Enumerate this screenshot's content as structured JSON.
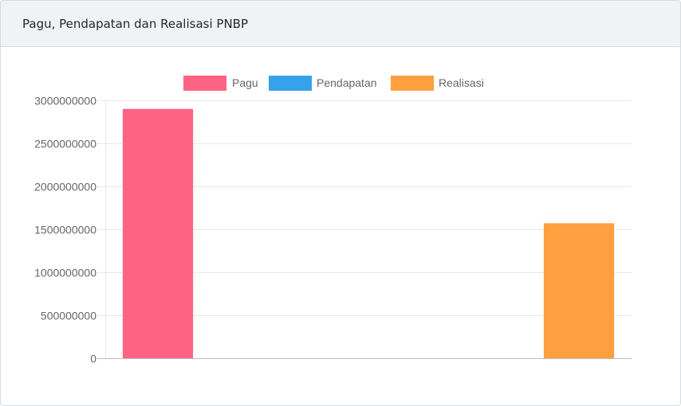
{
  "card": {
    "title": "Pagu, Pendapatan dan Realisasi PNBP"
  },
  "chart_data": {
    "type": "bar",
    "categories": [
      "",
      ""
    ],
    "series": [
      {
        "name": "Pagu",
        "color": "#ff6384",
        "values": [
          2900000000,
          0
        ]
      },
      {
        "name": "Pendapatan",
        "color": "#36a2eb",
        "values": [
          0,
          0
        ]
      },
      {
        "name": "Realisasi",
        "color": "#ff9f40",
        "values": [
          0,
          1570000000
        ]
      }
    ],
    "yticks": [
      "0",
      "500000000",
      "1000000000",
      "1500000000",
      "2000000000",
      "2500000000",
      "3000000000"
    ],
    "ylim": [
      0,
      3000000000
    ],
    "legend": "top",
    "grid": true
  }
}
